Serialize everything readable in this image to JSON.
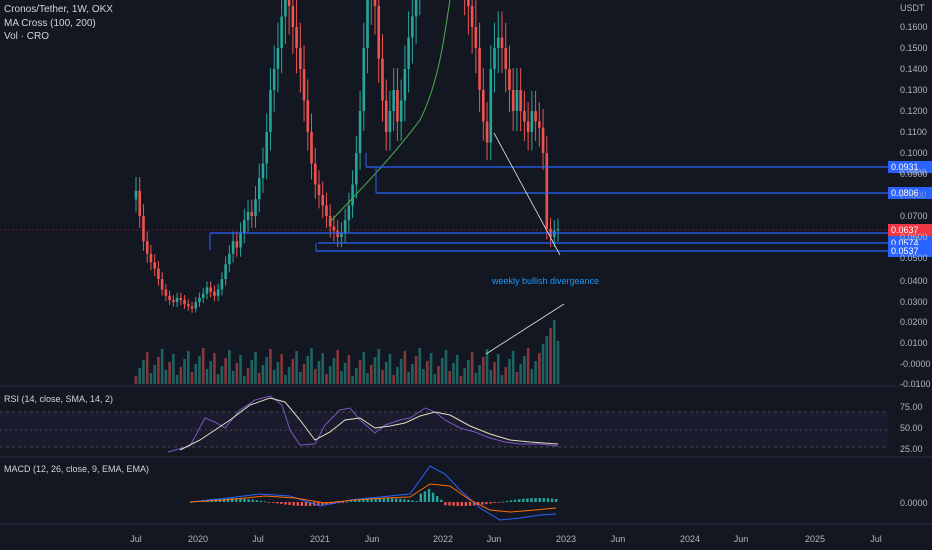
{
  "header": {
    "symbol_line": "Cronos/Tether, 1W, OKX",
    "ma_line": "MA Cross (100, 200)",
    "vol_line": "Vol · CRO"
  },
  "colors": {
    "background": "#131722",
    "up": "#26a69a",
    "down": "#ef5350",
    "blue_line": "#2962ff",
    "ma_green": "#4caf50",
    "rsi_line": "#7e57c2",
    "rsi_ma": "#e0e0c0",
    "macd_line": "#2962ff",
    "signal_line": "#ff6d00",
    "current_price": "#f23645"
  },
  "chart_data": {
    "type": "candlestick",
    "currency": "USDT",
    "y_ticks": [
      "0.1600",
      "0.1500",
      "0.1400",
      "0.1300",
      "0.1200",
      "0.1100",
      "0.1000",
      "0.0900",
      "0.0700",
      "0.0600",
      "0.0500",
      "0.0400",
      "0.0300",
      "0.0200",
      "0.0100",
      "-0.0000",
      "-0.0100"
    ],
    "x_ticks": [
      "Jul",
      "2020",
      "Jul",
      "2021",
      "Jun",
      "2022",
      "Jun",
      "2023",
      "Jun",
      "2024",
      "Jun",
      "2025",
      "Jul"
    ],
    "price_lines": [
      {
        "label": "0.0931",
        "value": 0.0931
      },
      {
        "label": "0.0806",
        "value": 0.0806
      },
      {
        "label": "0.0629",
        "value": 0.0629
      },
      {
        "label": "0.0574",
        "value": 0.0574
      },
      {
        "label": "0.0537",
        "value": 0.0537
      }
    ],
    "current_price": {
      "label": "0.0637",
      "value": 0.0637
    },
    "overlay_labels": [
      "0.0900",
      "0.0800"
    ],
    "annotation": "weekly bullish divergeance",
    "candles_weekly_close": [
      0.082,
      0.07,
      0.058,
      0.052,
      0.048,
      0.045,
      0.04,
      0.035,
      0.032,
      0.03,
      0.029,
      0.031,
      0.03,
      0.028,
      0.027,
      0.026,
      0.029,
      0.031,
      0.033,
      0.036,
      0.034,
      0.032,
      0.035,
      0.04,
      0.047,
      0.052,
      0.058,
      0.055,
      0.062,
      0.068,
      0.072,
      0.07,
      0.078,
      0.088,
      0.095,
      0.11,
      0.13,
      0.14,
      0.15,
      0.165,
      0.175,
      0.17,
      0.16,
      0.15,
      0.14,
      0.125,
      0.11,
      0.095,
      0.085,
      0.08,
      0.075,
      0.07,
      0.065,
      0.063,
      0.06,
      0.062,
      0.068,
      0.075,
      0.085,
      0.1,
      0.12,
      0.15,
      0.175,
      0.19,
      0.17,
      0.145,
      0.125,
      0.11,
      0.12,
      0.13,
      0.115,
      0.125,
      0.14,
      0.155,
      0.165,
      0.18,
      0.19,
      0.2,
      0.21,
      0.22,
      0.23,
      0.24,
      0.25,
      0.26,
      0.27,
      0.28,
      0.23,
      0.2,
      0.18,
      0.17,
      0.16,
      0.15,
      0.13,
      0.115,
      0.105,
      0.14,
      0.15,
      0.155,
      0.15,
      0.14,
      0.13,
      0.12,
      0.13,
      0.12,
      0.115,
      0.11,
      0.12,
      0.115,
      0.112,
      0.1,
      0.064,
      0.06,
      0.063,
      0.0637
    ],
    "rsi": {
      "label": "RSI (14, close, SMA, 14, 2)",
      "ticks": [
        "75.00",
        "50.00",
        "25.00"
      ],
      "range": [
        0,
        100
      ]
    },
    "macd": {
      "label": "MACD (12, 26, close, 9, EMA, EMA)",
      "ticks": [
        "0.0000"
      ]
    }
  }
}
